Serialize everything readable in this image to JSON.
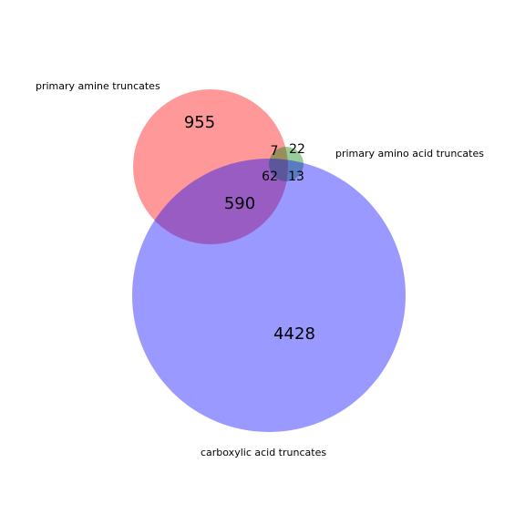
{
  "sets": [
    {
      "key": "amine",
      "label": "primary amine truncates",
      "color": "#ff0000",
      "opacity": 0.4
    },
    {
      "key": "amino_acid",
      "label": "primary amino acid truncates",
      "color": "#008000",
      "opacity": 0.4
    },
    {
      "key": "carboxylic",
      "label": "carboxylic acid truncates",
      "color": "#0000ff",
      "opacity": 0.4
    }
  ],
  "regions": {
    "amine_only": "955",
    "amino_acid_only": "22",
    "carboxylic_only": "4428",
    "amine_amino_acid": "7",
    "amine_carboxylic": "590",
    "amino_acid_carboxylic": "13",
    "all_three": "62"
  }
}
